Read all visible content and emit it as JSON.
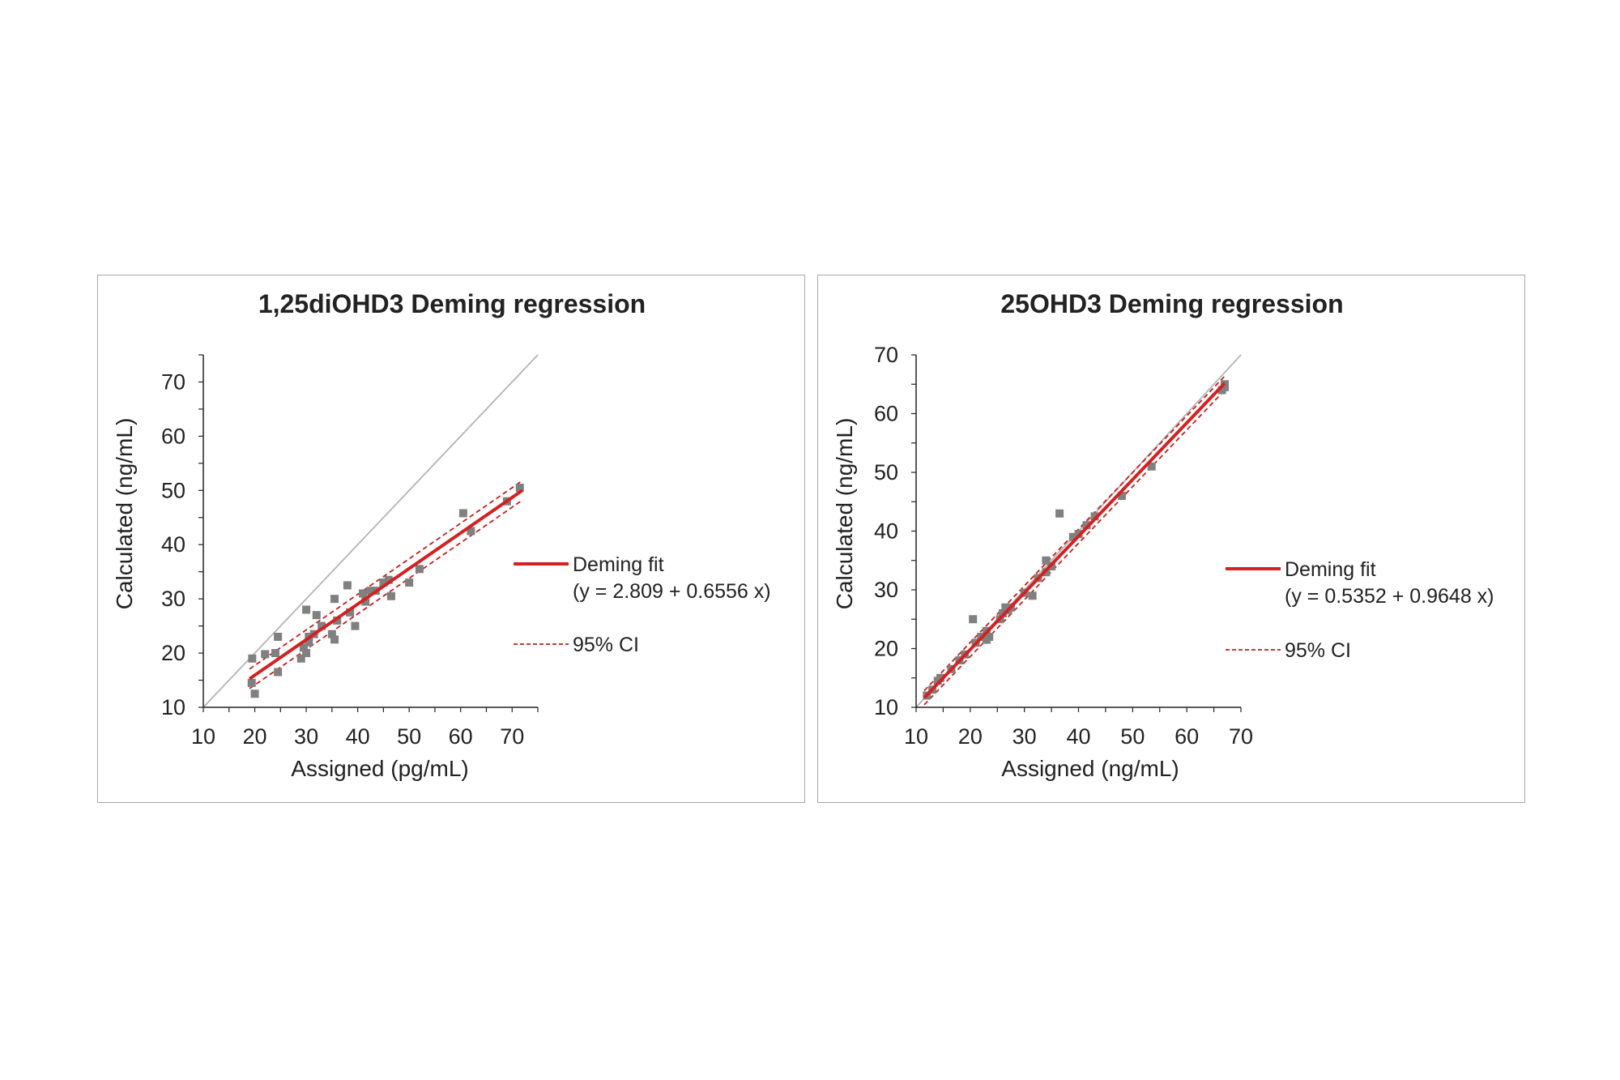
{
  "colors": {
    "fit": "#d42020",
    "ci": "#c81c1c",
    "points": "#808080",
    "identity": "#b4b4b4",
    "axis": "#222222",
    "border": "#a8a8a8"
  },
  "chart_data": [
    {
      "type": "scatter",
      "title": "1,25diOHD3 Deming regression",
      "xlabel": "Assigned (pg/mL)",
      "ylabel": "Calculated (ng/mL)",
      "xlim": [
        10,
        75
      ],
      "ylim": [
        10,
        75
      ],
      "xticks": [
        10,
        20,
        30,
        40,
        50,
        60,
        70
      ],
      "yticks": [
        10,
        20,
        30,
        40,
        50,
        60,
        70
      ],
      "grid": false,
      "identity_line": true,
      "legend_position": "right",
      "fit": {
        "label": "Deming fit",
        "equation": "(y = 2.809 + 0.6556 x)",
        "intercept": 2.809,
        "slope": 0.6556,
        "x_range": [
          19,
          72
        ]
      },
      "ci": {
        "label": "95% CI",
        "lower_offset": -1.8,
        "upper_offset": 1.8
      },
      "series": [
        {
          "values": [
            [
              19.5,
              19.0
            ],
            [
              19.4,
              14.5
            ],
            [
              20.0,
              12.5
            ],
            [
              22.0,
              19.8
            ],
            [
              24.5,
              23.0
            ],
            [
              24.5,
              16.5
            ],
            [
              24.0,
              20.0
            ],
            [
              29.0,
              19.0
            ],
            [
              29.5,
              21.0
            ],
            [
              30.0,
              20.0
            ],
            [
              30.5,
              22.0
            ],
            [
              30.0,
              28.0
            ],
            [
              30.5,
              23.0
            ],
            [
              31.5,
              23.5
            ],
            [
              32.0,
              27.0
            ],
            [
              33.0,
              25.0
            ],
            [
              35.0,
              23.5
            ],
            [
              35.5,
              22.5
            ],
            [
              35.5,
              30.0
            ],
            [
              36.0,
              26.0
            ],
            [
              38.0,
              32.5
            ],
            [
              38.5,
              27.5
            ],
            [
              39.5,
              25.0
            ],
            [
              41.0,
              31.0
            ],
            [
              41.5,
              29.5
            ],
            [
              42.5,
              31.5
            ],
            [
              43.5,
              31.5
            ],
            [
              45.0,
              33.0
            ],
            [
              46.5,
              30.5
            ],
            [
              46.0,
              33.5
            ],
            [
              50.0,
              33.0
            ],
            [
              52.0,
              35.5
            ],
            [
              60.5,
              45.8
            ],
            [
              62.0,
              42.5
            ],
            [
              69.0,
              48.0
            ],
            [
              71.5,
              50.5
            ]
          ]
        }
      ]
    },
    {
      "type": "scatter",
      "title": "25OHD3 Deming regression",
      "xlabel": "Assigned (ng/mL)",
      "ylabel": "Calculated (ng/mL)",
      "xlim": [
        10,
        70
      ],
      "ylim": [
        10,
        70
      ],
      "xticks": [
        10,
        20,
        30,
        40,
        50,
        60,
        70
      ],
      "yticks": [
        10,
        20,
        30,
        40,
        50,
        60,
        70
      ],
      "grid": false,
      "identity_line": true,
      "legend_position": "right",
      "fit": {
        "label": "Deming fit",
        "equation": "(y = 0.5352 + 0.9648 x)",
        "intercept": 0.5352,
        "slope": 0.9648,
        "x_range": [
          11.5,
          67
        ]
      },
      "ci": {
        "label": "95% CI",
        "lower_offset": -1.2,
        "upper_offset": 1.2
      },
      "series": [
        {
          "values": [
            [
              12.0,
              12.0
            ],
            [
              13.0,
              13.0
            ],
            [
              14.0,
              14.5
            ],
            [
              14.5,
              15.0
            ],
            [
              16.5,
              16.5
            ],
            [
              18.0,
              18.0
            ],
            [
              19.0,
              19.0
            ],
            [
              20.5,
              25.0
            ],
            [
              21.0,
              21.0
            ],
            [
              22.0,
              22.0
            ],
            [
              23.0,
              21.5
            ],
            [
              23.0,
              23.0
            ],
            [
              23.5,
              22.0
            ],
            [
              25.5,
              25.0
            ],
            [
              26.0,
              26.0
            ],
            [
              26.5,
              27.0
            ],
            [
              27.0,
              26.5
            ],
            [
              27.5,
              27.0
            ],
            [
              30.0,
              29.5
            ],
            [
              31.5,
              29.0
            ],
            [
              32.5,
              32.0
            ],
            [
              34.0,
              33.0
            ],
            [
              34.0,
              35.0
            ],
            [
              35.0,
              34.0
            ],
            [
              36.5,
              43.0
            ],
            [
              39.0,
              39.0
            ],
            [
              40.0,
              39.5
            ],
            [
              41.5,
              41.0
            ],
            [
              43.0,
              42.5
            ],
            [
              48.0,
              46.0
            ],
            [
              53.5,
              51.0
            ],
            [
              66.5,
              64.0
            ],
            [
              67.0,
              65.0
            ],
            [
              67.0,
              64.5
            ]
          ]
        }
      ]
    }
  ]
}
